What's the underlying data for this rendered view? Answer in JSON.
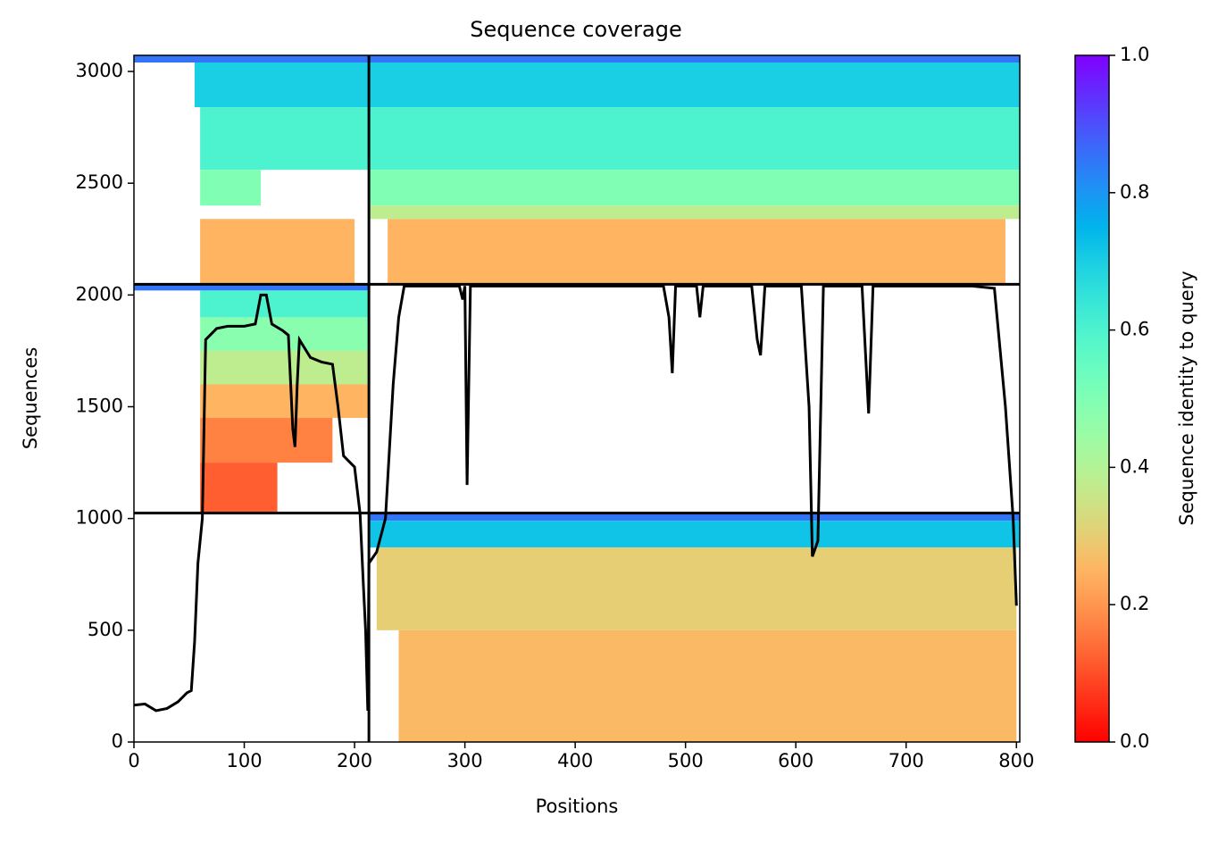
{
  "chart_data": {
    "type": "coverage",
    "title": "Sequence coverage",
    "xlabel": "Positions",
    "ylabel": "Sequences",
    "xlim": [
      0,
      803
    ],
    "ylim": [
      0,
      3072
    ],
    "xticks": [
      0,
      100,
      200,
      300,
      400,
      500,
      600,
      700,
      800
    ],
    "yticks": [
      0,
      500,
      1000,
      1500,
      2000,
      2500,
      3000
    ],
    "colormap": "rainbow_r",
    "colorbar": {
      "label": "Sequence identity to query",
      "lim": [
        0,
        1
      ],
      "ticks": [
        {
          "value": 0,
          "label": "0.0"
        },
        0.2,
        0.4,
        0.6,
        0.8,
        {
          "value": 1,
          "label": "1.0"
        }
      ]
    },
    "blocks": [
      {
        "x": [
          213,
          803
        ],
        "y": [
          3040,
          3072
        ],
        "identity": 0.85
      },
      {
        "x": [
          213,
          803
        ],
        "y": [
          2840,
          3040
        ],
        "identity": 0.7
      },
      {
        "x": [
          213,
          803
        ],
        "y": [
          2560,
          2840
        ],
        "identity": 0.6
      },
      {
        "x": [
          213,
          803
        ],
        "y": [
          2400,
          2560
        ],
        "identity": 0.5
      },
      {
        "x": [
          213,
          803
        ],
        "y": [
          2340,
          2400
        ],
        "identity": 0.38
      },
      {
        "x": [
          230,
          790
        ],
        "y": [
          2048,
          2340
        ],
        "identity": 0.25
      },
      {
        "x": [
          0,
          213
        ],
        "y": [
          3040,
          3072
        ],
        "identity": 0.85
      },
      {
        "x": [
          55,
          213
        ],
        "y": [
          2840,
          3040
        ],
        "identity": 0.7
      },
      {
        "x": [
          60,
          213
        ],
        "y": [
          2560,
          2840
        ],
        "identity": 0.6
      },
      {
        "x": [
          60,
          115
        ],
        "y": [
          2400,
          2560
        ],
        "identity": 0.5
      },
      {
        "x": [
          60,
          200
        ],
        "y": [
          2048,
          2340
        ],
        "identity": 0.25
      },
      {
        "x": [
          0,
          213
        ],
        "y": [
          2020,
          2048
        ],
        "identity": 0.85
      },
      {
        "x": [
          60,
          213
        ],
        "y": [
          1900,
          2020
        ],
        "identity": 0.6
      },
      {
        "x": [
          60,
          213
        ],
        "y": [
          1750,
          1900
        ],
        "identity": 0.48
      },
      {
        "x": [
          60,
          213
        ],
        "y": [
          1600,
          1750
        ],
        "identity": 0.38
      },
      {
        "x": [
          60,
          213
        ],
        "y": [
          1450,
          1600
        ],
        "identity": 0.25
      },
      {
        "x": [
          60,
          180
        ],
        "y": [
          1250,
          1450
        ],
        "identity": 0.17
      },
      {
        "x": [
          60,
          130
        ],
        "y": [
          1024,
          1250
        ],
        "identity": 0.12
      },
      {
        "x": [
          213,
          803
        ],
        "y": [
          990,
          1024
        ],
        "identity": 0.85
      },
      {
        "x": [
          213,
          803
        ],
        "y": [
          870,
          990
        ],
        "identity": 0.72
      },
      {
        "x": [
          220,
          800
        ],
        "y": [
          500,
          870
        ],
        "identity": 0.3
      },
      {
        "x": [
          240,
          800
        ],
        "y": [
          0,
          500
        ],
        "identity": 0.26
      }
    ],
    "hlines": [
      1024,
      2048
    ],
    "vlines": [
      213
    ],
    "coverage": {
      "color": "#000000",
      "x": [
        0,
        10,
        20,
        30,
        40,
        48,
        52,
        55,
        58,
        62,
        65,
        75,
        85,
        100,
        110,
        115,
        120,
        125,
        135,
        140,
        144,
        146,
        148,
        150,
        160,
        170,
        180,
        185,
        190,
        200,
        205,
        208,
        210,
        212,
        213,
        220,
        228,
        235,
        240,
        245,
        295,
        298,
        300,
        302,
        305,
        480,
        485,
        488,
        491,
        510,
        513,
        516,
        560,
        565,
        568,
        572,
        605,
        612,
        615,
        620,
        625,
        660,
        666,
        670,
        760,
        780,
        790,
        797,
        800
      ],
      "values": [
        165,
        170,
        140,
        150,
        180,
        220,
        230,
        450,
        800,
        1000,
        1800,
        1850,
        1860,
        1860,
        1870,
        2000,
        2000,
        1870,
        1840,
        1820,
        1400,
        1320,
        1600,
        1800,
        1720,
        1700,
        1690,
        1500,
        1280,
        1230,
        1020,
        700,
        500,
        140,
        800,
        850,
        1000,
        1600,
        1900,
        2040,
        2040,
        1980,
        2040,
        1150,
        2040,
        2040,
        1900,
        1650,
        2040,
        2040,
        1900,
        2040,
        2040,
        1800,
        1730,
        2040,
        2040,
        1500,
        830,
        900,
        2040,
        2040,
        1470,
        2040,
        2040,
        2030,
        1500,
        1000,
        610
      ]
    }
  }
}
